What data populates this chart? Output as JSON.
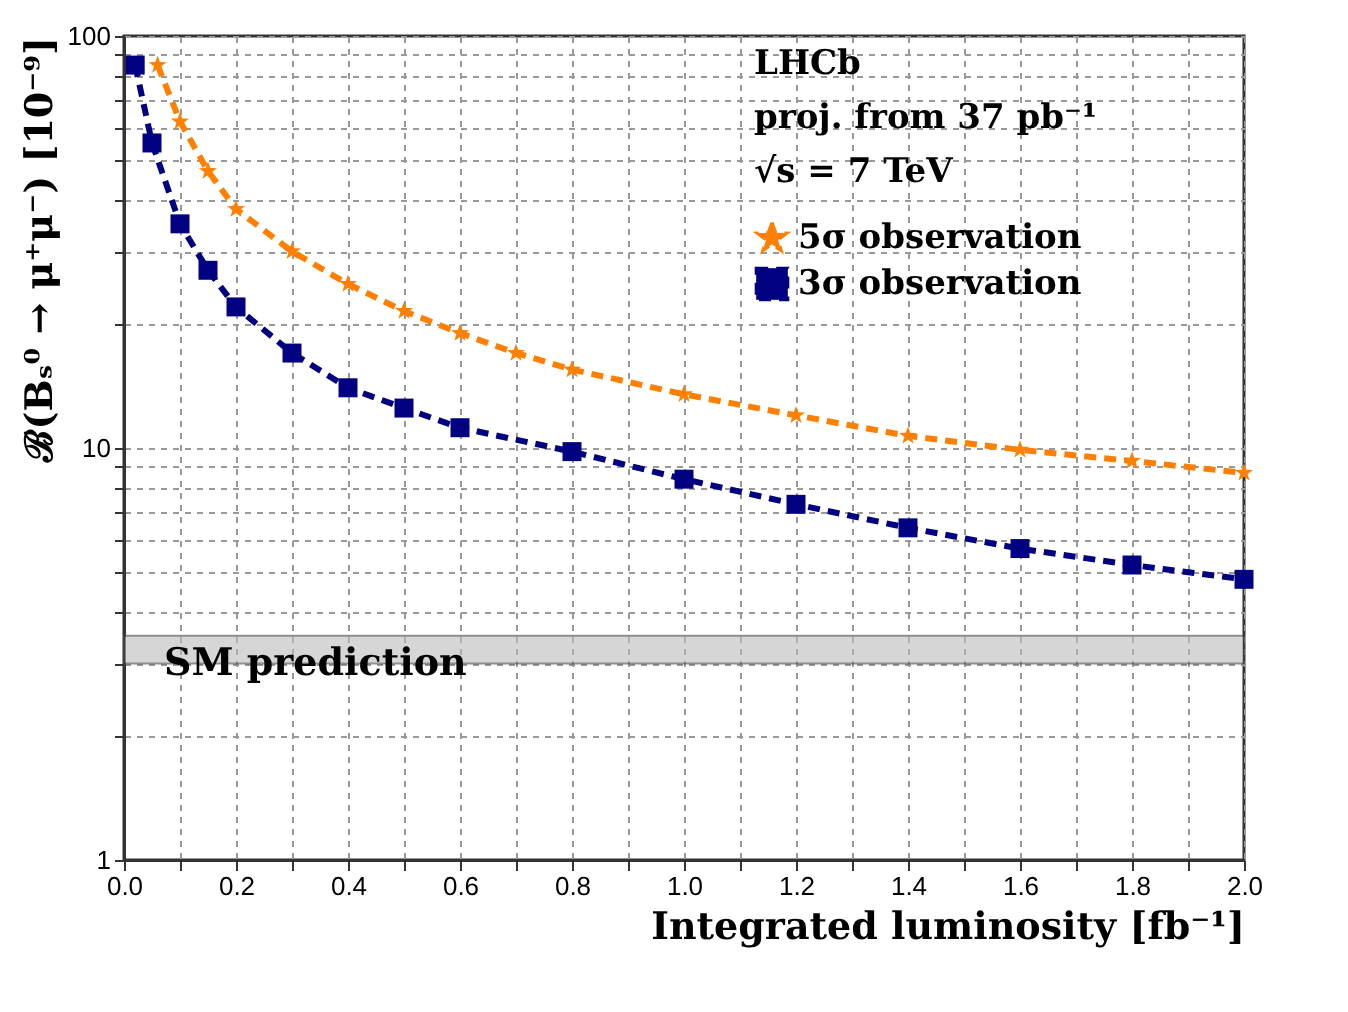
{
  "chart_data": {
    "type": "line",
    "xlabel": "Integrated luminosity [fb⁻¹]",
    "ylabel": "ℬ(Bₛ⁰ → μ⁺μ⁻) [10⁻⁹]",
    "annotations": [
      "LHCb",
      "proj. from 37 pb⁻¹",
      "√s = 7 TeV"
    ],
    "series": [
      {
        "name": "5σ observation",
        "color": "#ff8000",
        "marker": "star",
        "line_style": "dashed",
        "x": [
          0.06,
          0.1,
          0.15,
          0.2,
          0.3,
          0.4,
          0.5,
          0.6,
          0.7,
          0.8,
          1.0,
          1.2,
          1.4,
          1.6,
          1.8,
          2.0
        ],
        "values": [
          85,
          62,
          47,
          38,
          30,
          25,
          21.5,
          19,
          17,
          15.5,
          13.5,
          12,
          10.7,
          9.9,
          9.3,
          8.7
        ]
      },
      {
        "name": "3σ observation",
        "color": "#000080",
        "marker": "square",
        "line_style": "dashed",
        "x": [
          0.02,
          0.05,
          0.1,
          0.15,
          0.2,
          0.3,
          0.4,
          0.5,
          0.6,
          0.8,
          1.0,
          1.2,
          1.4,
          1.6,
          1.8,
          2.0
        ],
        "values": [
          85,
          55,
          35,
          27,
          22,
          17,
          14,
          12.5,
          11.2,
          9.8,
          8.4,
          7.3,
          6.4,
          5.7,
          5.2,
          4.8
        ]
      }
    ],
    "bands": [
      {
        "axis": "y",
        "from": 3.0,
        "to": 3.5,
        "label": "SM prediction",
        "color": "#bbbbbb"
      }
    ],
    "log": "y",
    "xlim": [
      0,
      2.0
    ],
    "ylim": [
      1,
      100
    ],
    "xticks": [
      {
        "value": 0,
        "label": "0.0"
      },
      {
        "value": 0.1,
        "label": null
      },
      0.2,
      {
        "value": 0.3,
        "label": null
      },
      0.4,
      {
        "value": 0.5,
        "label": null
      },
      0.6,
      {
        "value": 0.7,
        "label": null
      },
      0.8,
      {
        "value": 0.9,
        "label": null
      },
      {
        "value": 1.0,
        "label": "1.0"
      },
      {
        "value": 1.1,
        "label": null
      },
      1.2,
      {
        "value": 1.3,
        "label": null
      },
      1.4,
      {
        "value": 1.5,
        "label": null
      },
      1.6,
      {
        "value": 1.7,
        "label": null
      },
      1.8,
      {
        "value": 1.9,
        "label": null
      },
      {
        "value": 2.0,
        "label": "2.0"
      }
    ],
    "yticks": [
      1,
      {
        "value": 2,
        "label": null
      },
      {
        "value": 3,
        "label": null
      },
      {
        "value": 4,
        "label": null
      },
      {
        "value": 5,
        "label": null
      },
      {
        "value": 6,
        "label": null
      },
      {
        "value": 7,
        "label": null
      },
      {
        "value": 8,
        "label": null
      },
      {
        "value": 9,
        "label": null
      },
      10,
      {
        "value": 20,
        "label": null
      },
      {
        "value": 30,
        "label": null
      },
      {
        "value": 40,
        "label": null
      },
      {
        "value": 50,
        "label": null
      },
      {
        "value": 60,
        "label": null
      },
      {
        "value": 70,
        "label": null
      },
      {
        "value": 80,
        "label": null
      },
      {
        "value": 90,
        "label": null
      },
      100
    ],
    "grid": true,
    "legend": "top right"
  }
}
